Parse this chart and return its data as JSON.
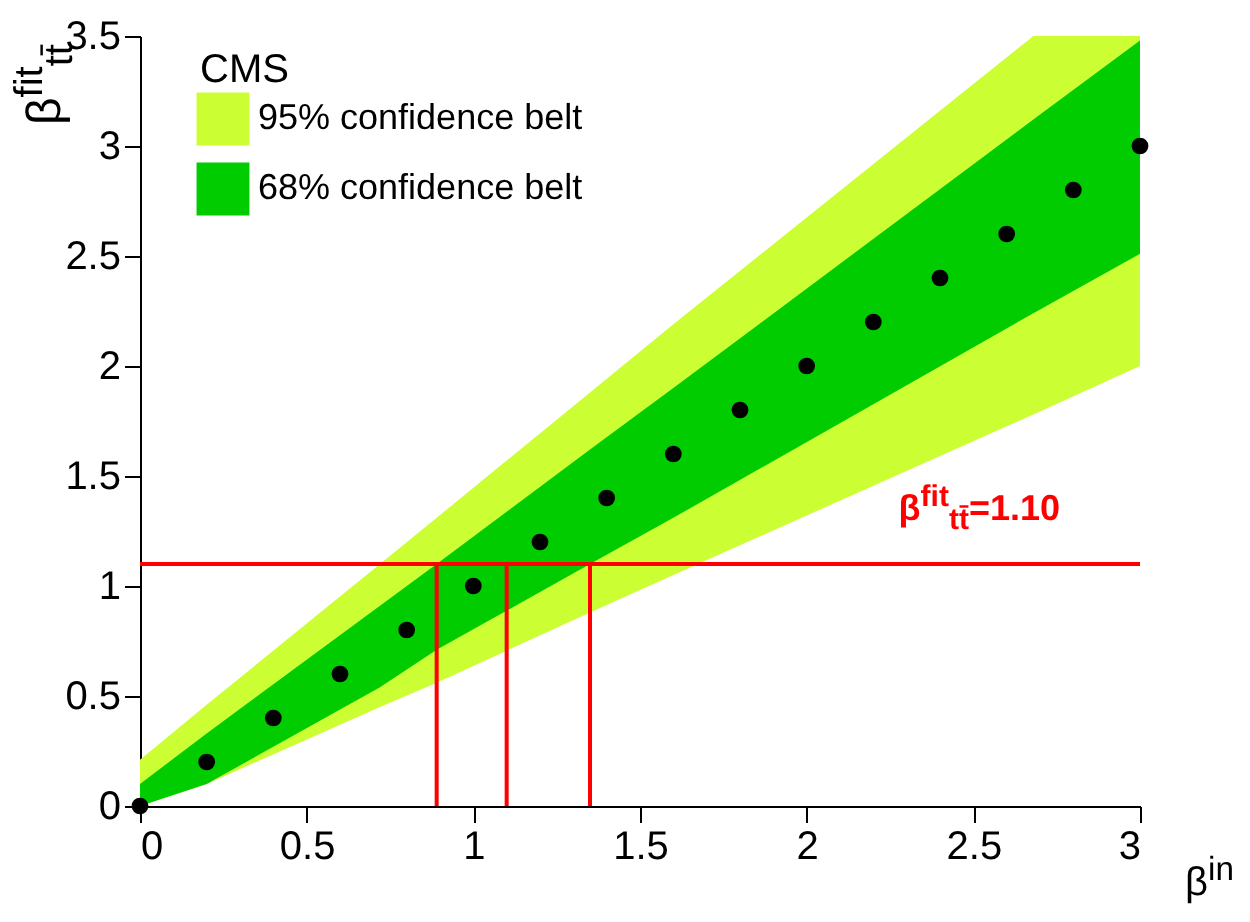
{
  "chart_data": {
    "type": "scatter",
    "xlabel": "β$^{in}$",
    "ylabel": "β$^{fit}$$_{tt̄}$",
    "annotations": [
      "CMS"
    ],
    "series": [
      {
        "name": "95% confidence belt",
        "type": "area",
        "color": "#ccff33",
        "x": [
          0,
          0.2,
          0.72,
          0.89,
          1.35,
          1.6,
          2.68,
          3
        ],
        "values": [
          null,
          null,
          null,
          null,
          null,
          null,
          null,
          null
        ],
        "lower": [
          0,
          0.1,
          0.45,
          0.56,
          0.88,
          1.05,
          1.78,
          2.0
        ],
        "upper": [
          0.21,
          0.46,
          1.1,
          1.31,
          1.88,
          2.19,
          3.5,
          3.5
        ]
      },
      {
        "name": "68% confidence belt",
        "type": "area",
        "color": "#00cc00",
        "x": [
          0,
          0.2,
          0.72,
          0.89,
          1.35,
          1.6,
          2.68,
          3
        ],
        "values": [
          null,
          null,
          null,
          null,
          null,
          null,
          null,
          null
        ],
        "lower": [
          0,
          0.1,
          0.54,
          0.71,
          1.1,
          1.31,
          2.24,
          2.51
        ],
        "upper": [
          0.1,
          0.33,
          0.91,
          1.1,
          1.62,
          1.9,
          3.12,
          3.48
        ]
      },
      {
        "color": "#000000",
        "marker": "circle",
        "x": [
          0,
          0.2,
          0.4,
          0.6,
          0.8,
          1.0,
          1.2,
          1.4,
          1.6,
          1.8,
          2.0,
          2.2,
          2.4,
          2.6,
          2.8,
          3.0
        ],
        "values": [
          0,
          0.2,
          0.4,
          0.6,
          0.8,
          1.0,
          1.2,
          1.4,
          1.6,
          1.8,
          2.0,
          2.2,
          2.4,
          2.6,
          2.8,
          3.0
        ]
      }
    ],
    "ref_lines": [
      {
        "axis": "y",
        "value": 1.1,
        "label": "β$^{fit}$$_{tt̄}$=1.10",
        "color": "#ff0000"
      },
      {
        "axis": "x",
        "value": 0.89,
        "color": "#ff0000"
      },
      {
        "axis": "x",
        "value": 1.1,
        "color": "#ff0000"
      },
      {
        "axis": "x",
        "value": 1.35,
        "color": "#ff0000"
      }
    ],
    "xlim": [
      0,
      3
    ],
    "xticks": [
      0,
      0.5,
      1,
      1.5,
      2,
      2.5,
      3
    ],
    "ylim": [
      0,
      3.5
    ],
    "yticks": [
      0,
      0.5,
      1,
      1.5,
      2,
      2.5,
      3,
      3.5
    ],
    "legend": "top left",
    "grid": false
  }
}
